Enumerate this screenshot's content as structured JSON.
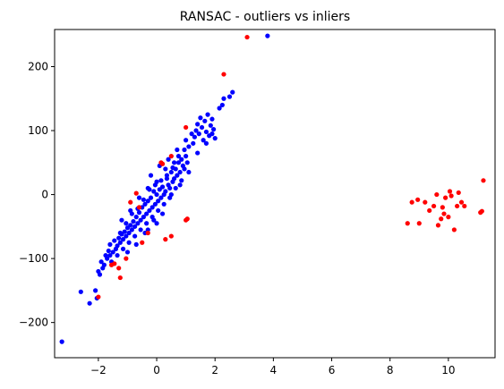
{
  "chart_data": {
    "type": "scatter",
    "title": "RANSAC - outliers vs inliers",
    "xlabel": "",
    "ylabel": "",
    "xlim": [
      -3.5,
      11.6
    ],
    "ylim": [
      -255,
      258
    ],
    "x_ticks": [
      -2,
      0,
      2,
      4,
      6,
      8,
      10
    ],
    "y_ticks": [
      -200,
      -100,
      0,
      100,
      200
    ],
    "x_tick_labels": [
      "−2",
      "0",
      "2",
      "4",
      "6",
      "8",
      "10"
    ],
    "y_tick_labels": [
      "−200",
      "−100",
      "0",
      "100",
      "200"
    ],
    "grid": false,
    "legend": "none",
    "colors": {
      "inlier": "#0000ff",
      "outlier": "#ff0000",
      "axis": "#000000"
    },
    "series": [
      {
        "color": "#0000ff",
        "points": [
          [
            -3.25,
            -230
          ],
          [
            -2.6,
            -152
          ],
          [
            -2.3,
            -170
          ],
          [
            -2.1,
            -150
          ],
          [
            -2.05,
            -162
          ],
          [
            3.8,
            248
          ],
          [
            2.6,
            160
          ],
          [
            2.5,
            153
          ],
          [
            2.3,
            150
          ],
          [
            2.25,
            140
          ],
          [
            2.15,
            135
          ],
          [
            1.3,
            90
          ],
          [
            1.35,
            100
          ],
          [
            1.4,
            110
          ],
          [
            1.45,
            95
          ],
          [
            1.5,
            120
          ],
          [
            1.55,
            105
          ],
          [
            1.6,
            85
          ],
          [
            1.65,
            115
          ],
          [
            1.7,
            98
          ],
          [
            1.75,
            125
          ],
          [
            1.8,
            92
          ],
          [
            1.85,
            108
          ],
          [
            1.9,
            118
          ],
          [
            1.95,
            102
          ],
          [
            2.0,
            88
          ],
          [
            1.25,
            80
          ],
          [
            1.2,
            95
          ],
          [
            1.1,
            75
          ],
          [
            1.0,
            60
          ],
          [
            0.95,
            70
          ],
          [
            0.9,
            45
          ],
          [
            0.85,
            55
          ],
          [
            0.8,
            35
          ],
          [
            0.75,
            50
          ],
          [
            0.7,
            30
          ],
          [
            0.65,
            40
          ],
          [
            0.6,
            25
          ],
          [
            0.55,
            20
          ],
          [
            0.5,
            35
          ],
          [
            0.45,
            10
          ],
          [
            0.4,
            15
          ],
          [
            0.35,
            25
          ],
          [
            0.3,
            5
          ],
          [
            0.25,
            0
          ],
          [
            0.2,
            12
          ],
          [
            0.15,
            -5
          ],
          [
            0.1,
            8
          ],
          [
            0.05,
            -10
          ],
          [
            0.0,
            0
          ],
          [
            -0.05,
            -15
          ],
          [
            -0.1,
            5
          ],
          [
            -0.15,
            -20
          ],
          [
            -0.2,
            -5
          ],
          [
            -0.25,
            -25
          ],
          [
            -0.3,
            -10
          ],
          [
            -0.35,
            -30
          ],
          [
            -0.4,
            -15
          ],
          [
            -0.45,
            -35
          ],
          [
            -0.5,
            -20
          ],
          [
            -0.55,
            -40
          ],
          [
            -0.6,
            -28
          ],
          [
            -0.65,
            -45
          ],
          [
            -0.7,
            -35
          ],
          [
            -0.75,
            -50
          ],
          [
            -0.8,
            -42
          ],
          [
            -0.85,
            -55
          ],
          [
            -0.9,
            -48
          ],
          [
            -0.95,
            -60
          ],
          [
            -1.0,
            -52
          ],
          [
            -1.05,
            -65
          ],
          [
            -1.1,
            -58
          ],
          [
            -1.15,
            -70
          ],
          [
            -1.2,
            -62
          ],
          [
            -1.25,
            -75
          ],
          [
            -1.3,
            -68
          ],
          [
            -1.35,
            -80
          ],
          [
            -1.4,
            -85
          ],
          [
            -1.5,
            -90
          ],
          [
            -1.6,
            -95
          ],
          [
            -1.7,
            -100
          ],
          [
            -1.8,
            -110
          ],
          [
            -1.9,
            -105
          ],
          [
            -2.0,
            -120
          ],
          [
            -1.95,
            -125
          ],
          [
            -1.85,
            -115
          ],
          [
            -1.75,
            -95
          ],
          [
            -1.65,
            -88
          ],
          [
            -1.55,
            -105
          ],
          [
            -1.45,
            -72
          ],
          [
            -1.35,
            -95
          ],
          [
            -1.25,
            -60
          ],
          [
            -1.15,
            -85
          ],
          [
            -1.05,
            -45
          ],
          [
            -0.95,
            -75
          ],
          [
            -0.85,
            -30
          ],
          [
            -0.75,
            -65
          ],
          [
            -0.65,
            -22
          ],
          [
            -0.55,
            -55
          ],
          [
            -0.45,
            -8
          ],
          [
            -0.35,
            -45
          ],
          [
            -0.25,
            8
          ],
          [
            -0.15,
            -35
          ],
          [
            -0.05,
            15
          ],
          [
            0.05,
            -25
          ],
          [
            0.15,
            22
          ],
          [
            0.25,
            -15
          ],
          [
            0.35,
            30
          ],
          [
            0.45,
            -5
          ],
          [
            0.55,
            42
          ],
          [
            0.65,
            10
          ],
          [
            0.75,
            60
          ],
          [
            0.85,
            22
          ],
          [
            0.95,
            40
          ],
          [
            1.05,
            50
          ],
          [
            0.6,
            50
          ],
          [
            0.3,
            40
          ],
          [
            0.0,
            20
          ],
          [
            -0.3,
            10
          ],
          [
            -0.6,
            -5
          ],
          [
            -0.9,
            -25
          ],
          [
            -1.2,
            -40
          ],
          [
            -0.4,
            -60
          ],
          [
            -0.1,
            -40
          ],
          [
            0.2,
            -30
          ],
          [
            0.5,
            0
          ],
          [
            0.8,
            15
          ],
          [
            1.1,
            35
          ],
          [
            1.4,
            65
          ],
          [
            1.7,
            80
          ],
          [
            1.9,
            95
          ],
          [
            -0.2,
            30
          ],
          [
            0.1,
            45
          ],
          [
            0.4,
            55
          ],
          [
            0.7,
            70
          ],
          [
            1.0,
            85
          ],
          [
            -1.6,
            -78
          ],
          [
            -1.0,
            -90
          ],
          [
            -0.7,
            -78
          ],
          [
            -0.3,
            -55
          ],
          [
            0.0,
            -45
          ]
        ]
      },
      {
        "color": "#ff0000",
        "points": [
          [
            3.1,
            246
          ],
          [
            2.3,
            188
          ],
          [
            1.0,
            105
          ],
          [
            0.5,
            60
          ],
          [
            0.15,
            50
          ],
          [
            0.2,
            48
          ],
          [
            -0.7,
            2
          ],
          [
            -0.6,
            -20
          ],
          [
            -0.9,
            -12
          ],
          [
            -0.3,
            -60
          ],
          [
            -0.5,
            -75
          ],
          [
            0.3,
            -70
          ],
          [
            0.5,
            -65
          ],
          [
            1.0,
            -40
          ],
          [
            1.05,
            -38
          ],
          [
            -1.05,
            -100
          ],
          [
            -1.3,
            -115
          ],
          [
            -1.45,
            -108
          ],
          [
            -1.55,
            -110
          ],
          [
            -1.25,
            -130
          ],
          [
            -2.0,
            -160
          ],
          [
            8.6,
            -45
          ],
          [
            8.75,
            -12
          ],
          [
            8.95,
            -8
          ],
          [
            9.0,
            -45
          ],
          [
            9.2,
            -12
          ],
          [
            9.35,
            -25
          ],
          [
            9.5,
            -18
          ],
          [
            9.6,
            0
          ],
          [
            9.65,
            -48
          ],
          [
            9.75,
            -38
          ],
          [
            9.8,
            -20
          ],
          [
            9.85,
            -30
          ],
          [
            9.9,
            -5
          ],
          [
            10.0,
            -35
          ],
          [
            10.05,
            5
          ],
          [
            10.1,
            -2
          ],
          [
            10.2,
            -55
          ],
          [
            10.3,
            -18
          ],
          [
            10.35,
            3
          ],
          [
            10.45,
            -12
          ],
          [
            10.55,
            -18
          ],
          [
            11.1,
            -28
          ],
          [
            11.15,
            -26
          ],
          [
            11.2,
            22
          ]
        ]
      }
    ]
  }
}
